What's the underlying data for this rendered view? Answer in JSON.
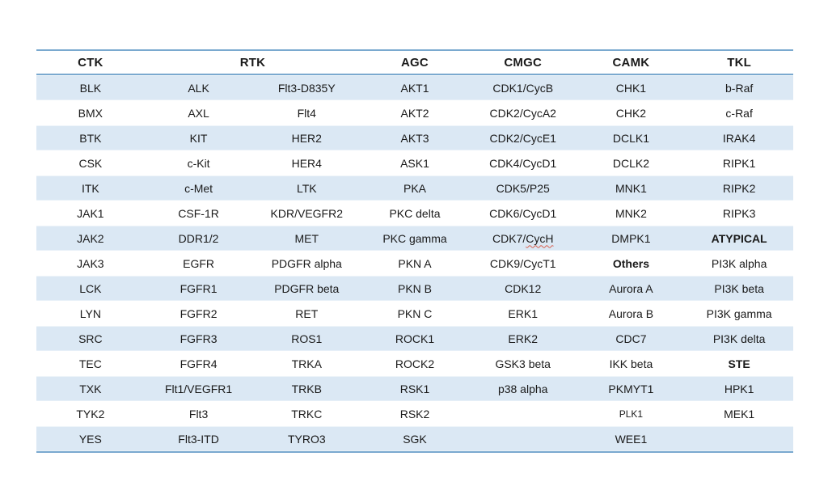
{
  "colors": {
    "row_band_blue": "#dbe8f4",
    "rule_blue": "#7aa9cf",
    "spellcheck_red": "#d8604f",
    "text": "#1a1a1a",
    "background": "#ffffff"
  },
  "table": {
    "columns": [
      {
        "label": "CTK",
        "span": 1
      },
      {
        "label": "RTK",
        "span": 2
      },
      {
        "label": "AGC",
        "span": 1
      },
      {
        "label": "CMGC",
        "span": 1
      },
      {
        "label": "CAMK",
        "span": 1
      },
      {
        "label": "TKL",
        "span": 1
      }
    ],
    "rows": [
      [
        "BLK",
        "ALK",
        "Flt3-D835Y",
        "AKT1",
        "CDK1/CycB",
        "CHK1",
        "b-Raf"
      ],
      [
        "BMX",
        "AXL",
        "Flt4",
        "AKT2",
        "CDK2/CycA2",
        "CHK2",
        "c-Raf"
      ],
      [
        "BTK",
        "KIT",
        "HER2",
        "AKT3",
        "CDK2/CycE1",
        "DCLK1",
        "IRAK4"
      ],
      [
        "CSK",
        "c-Kit",
        "HER4",
        "ASK1",
        "CDK4/CycD1",
        "DCLK2",
        "RIPK1"
      ],
      [
        "ITK",
        "c-Met",
        "LTK",
        "PKA",
        "CDK5/P25",
        "MNK1",
        "RIPK2"
      ],
      [
        "JAK1",
        "CSF-1R",
        "KDR/VEGFR2",
        "PKC delta",
        "CDK6/CycD1",
        "MNK2",
        "RIPK3"
      ],
      [
        "JAK2",
        "DDR1/2",
        "MET",
        "PKC gamma",
        {
          "text": "CDK7/CycH",
          "spell_error_part": "CycH"
        },
        "DMPK1",
        {
          "text": "ATYPICAL",
          "bold": true
        }
      ],
      [
        "JAK3",
        "EGFR",
        "PDGFR alpha",
        "PKN A",
        "CDK9/CycT1",
        {
          "text": "Others",
          "bold": true
        },
        "PI3K alpha"
      ],
      [
        "LCK",
        "FGFR1",
        "PDGFR beta",
        "PKN B",
        "CDK12",
        "Aurora A",
        "PI3K beta"
      ],
      [
        "LYN",
        "FGFR2",
        "RET",
        "PKN C",
        "ERK1",
        "Aurora B",
        "PI3K gamma"
      ],
      [
        "SRC",
        "FGFR3",
        "ROS1",
        "ROCK1",
        "ERK2",
        "CDC7",
        "PI3K delta"
      ],
      [
        "TEC",
        "FGFR4",
        "TRKA",
        "ROCK2",
        "GSK3 beta",
        "IKK beta",
        {
          "text": "STE",
          "bold": true
        }
      ],
      [
        "TXK",
        "Flt1/VEGFR1",
        "TRKB",
        "RSK1",
        "p38 alpha",
        "PKMYT1",
        "HPK1"
      ],
      [
        "TYK2",
        "Flt3",
        "TRKC",
        "RSK2",
        "",
        {
          "text": "PLK1",
          "small": true
        },
        "MEK1"
      ],
      [
        "YES",
        "Flt3-ITD",
        "TYRO3",
        "SGK",
        "",
        "WEE1",
        ""
      ]
    ]
  }
}
